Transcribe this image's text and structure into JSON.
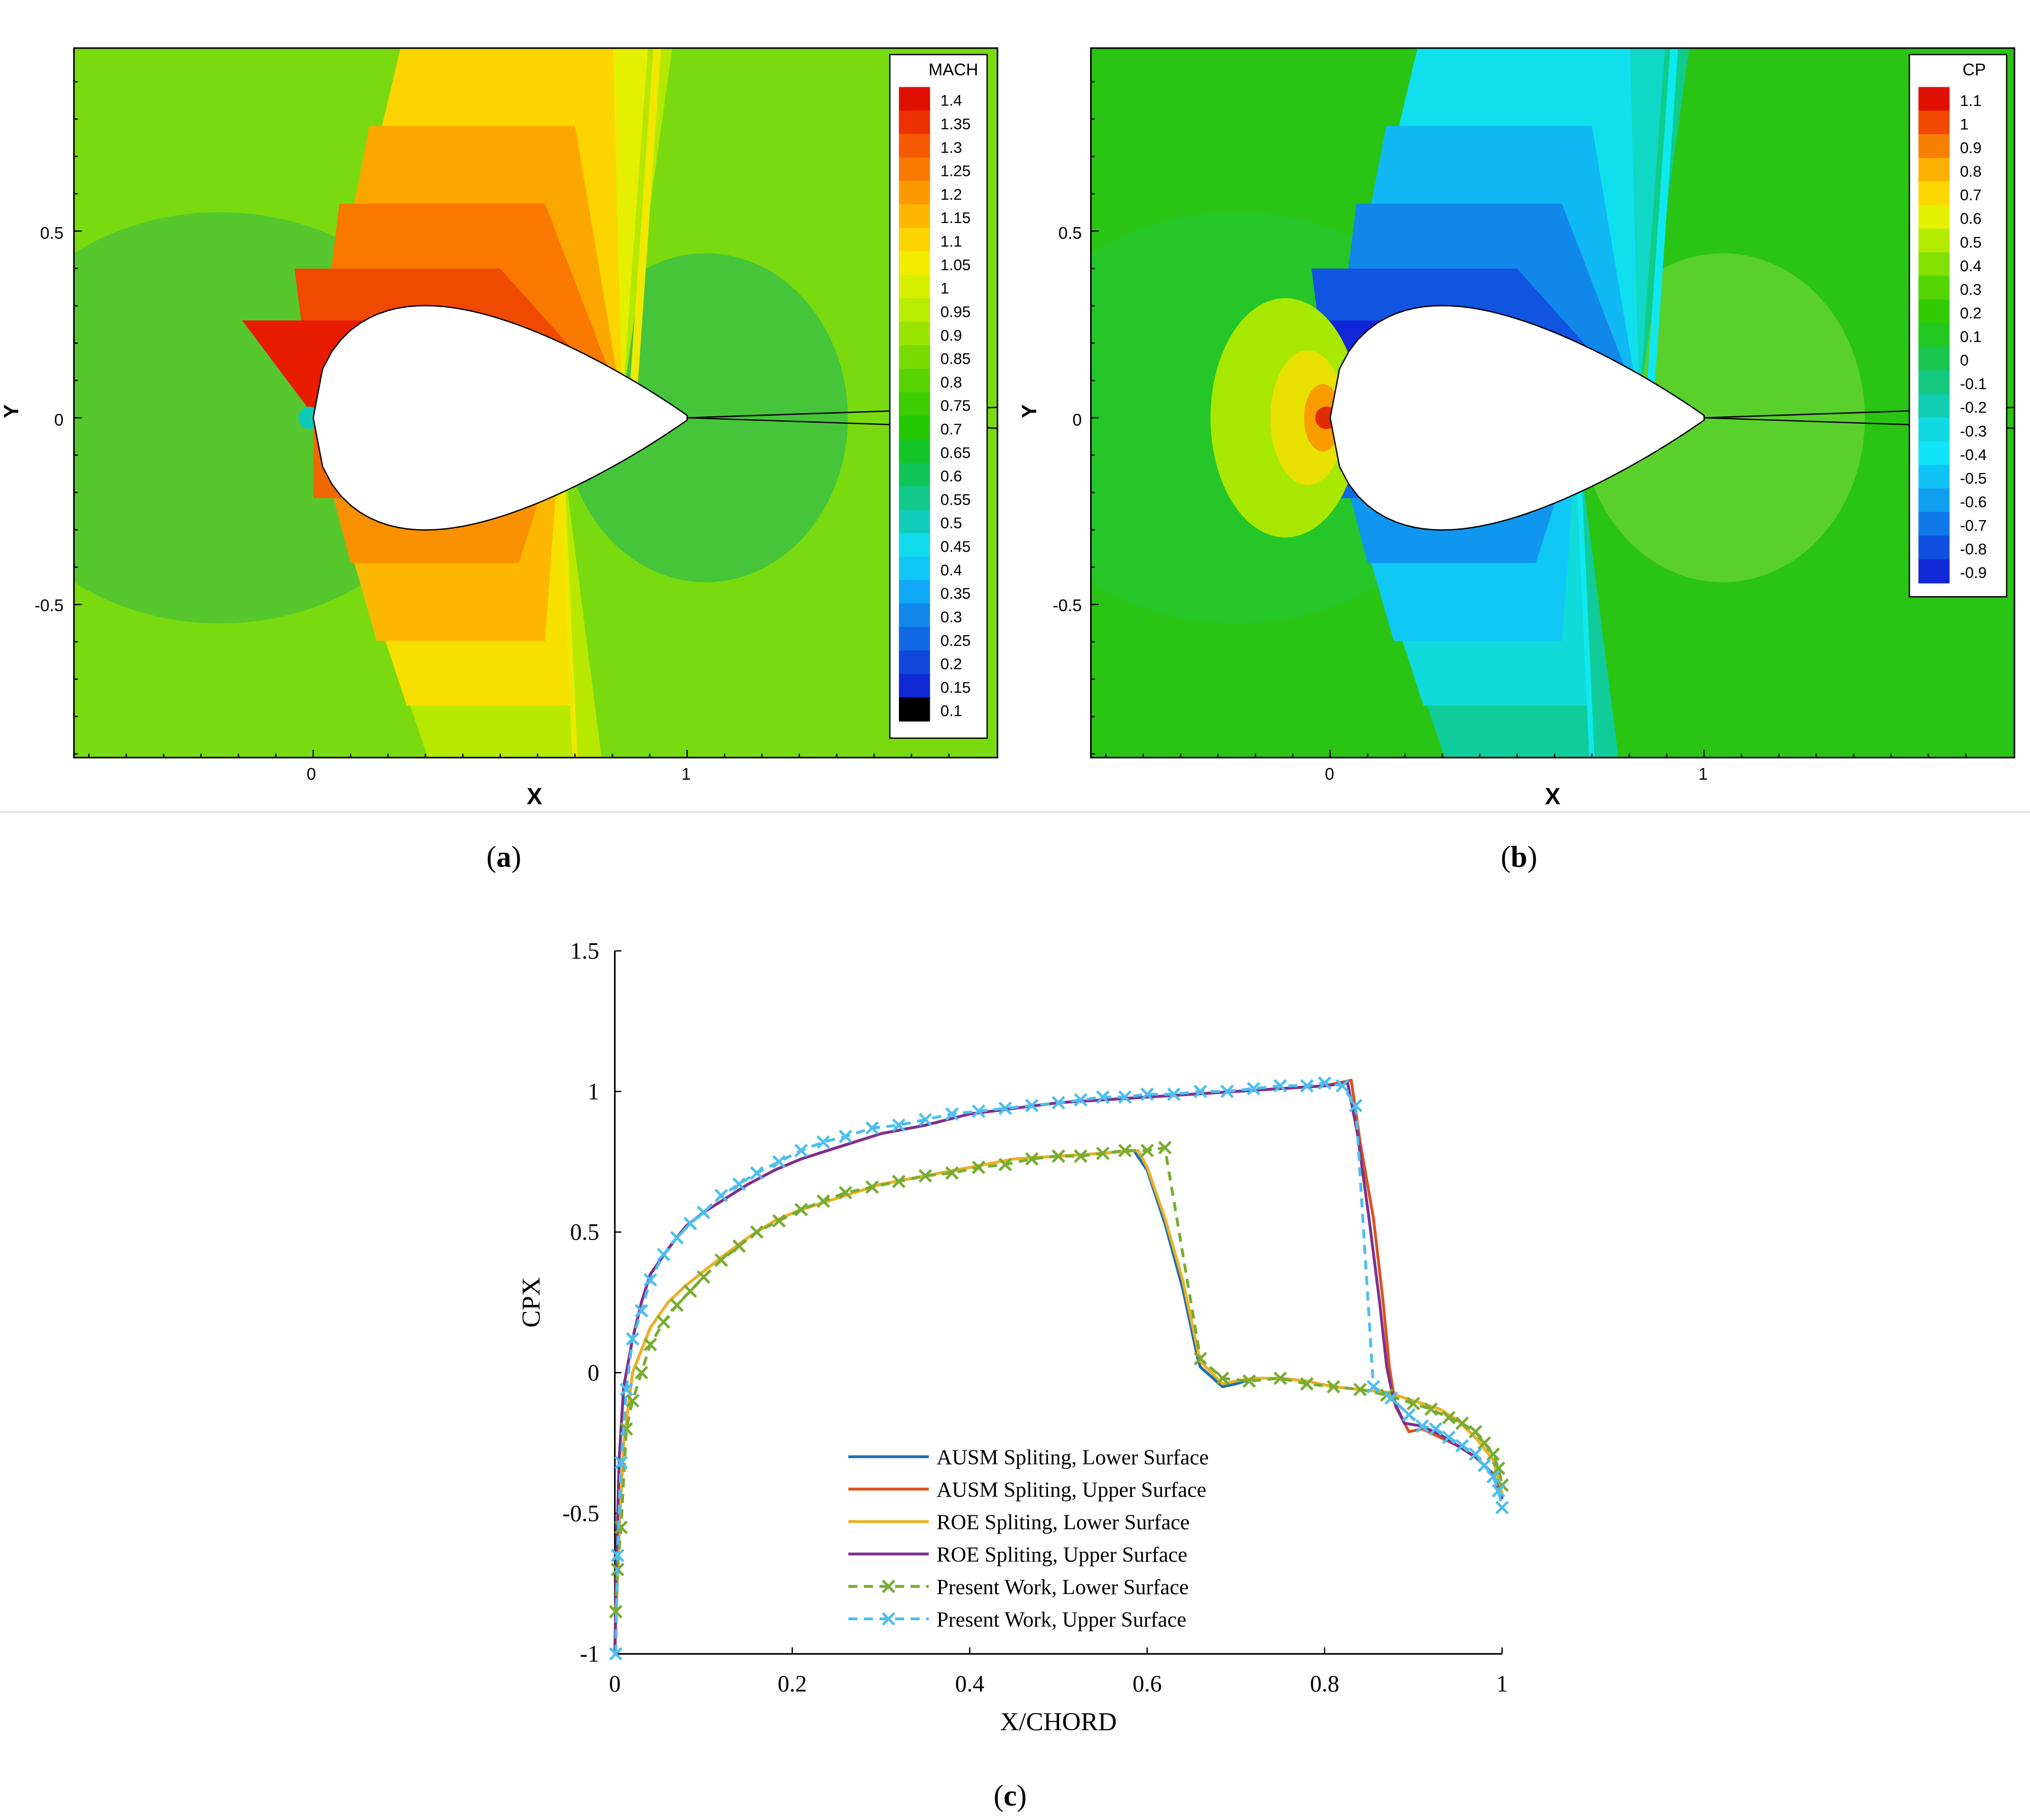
{
  "panels": {
    "a": {
      "caption": "a",
      "x_axis_label": "X",
      "y_axis_label": "Y",
      "x_ticks": [
        "0",
        "1"
      ],
      "y_ticks": [
        "0.5",
        "0",
        "-0.5"
      ],
      "legend_title": "MACH",
      "legend_levels": [
        "1.4",
        "1.35",
        "1.3",
        "1.25",
        "1.2",
        "1.15",
        "1.1",
        "1.05",
        "1",
        "0.95",
        "0.9",
        "0.85",
        "0.8",
        "0.75",
        "0.7",
        "0.65",
        "0.6",
        "0.55",
        "0.5",
        "0.45",
        "0.4",
        "0.35",
        "0.3",
        "0.25",
        "0.2",
        "0.15",
        "0.1"
      ],
      "legend_colors": [
        "#e01000",
        "#ec3000",
        "#f55a00",
        "#f87a00",
        "#fb9a00",
        "#fcb800",
        "#fcd400",
        "#f4ec00",
        "#d8f000",
        "#b8ec00",
        "#98e400",
        "#78dc00",
        "#58d400",
        "#3ccc00",
        "#24c800",
        "#14c628",
        "#10c458",
        "#10c888",
        "#10ccb8",
        "#10dcec",
        "#10c8f8",
        "#10a8f4",
        "#1088ec",
        "#1068e4",
        "#1048dc",
        "#1028d4",
        "#000000"
      ]
    },
    "b": {
      "caption": "b",
      "x_axis_label": "X",
      "y_axis_label": "Y",
      "x_ticks": [
        "0",
        "1"
      ],
      "y_ticks": [
        "0.5",
        "0",
        "-0.5"
      ],
      "legend_title": "CP",
      "legend_levels": [
        "1.1",
        "1",
        "0.9",
        "0.8",
        "0.7",
        "0.6",
        "0.5",
        "0.4",
        "0.3",
        "0.2",
        "0.1",
        "0",
        "-0.1",
        "-0.2",
        "-0.3",
        "-0.4",
        "-0.5",
        "-0.6",
        "-0.7",
        "-0.8",
        "-0.9"
      ],
      "legend_colors": [
        "#e01000",
        "#f04800",
        "#f88000",
        "#fcb000",
        "#fcd800",
        "#e4f000",
        "#b4ec00",
        "#84e000",
        "#54d400",
        "#30cc00",
        "#20c820",
        "#18c650",
        "#14c880",
        "#10ccb0",
        "#10d8e0",
        "#10e4f8",
        "#10c4f8",
        "#10a0f0",
        "#1078e8",
        "#1050e0",
        "#1028d8"
      ]
    },
    "c": {
      "caption": "c"
    }
  },
  "chart_data": [
    {
      "type": "contour",
      "panel": "a",
      "title": "",
      "variable": "MACH",
      "xlabel": "X",
      "ylabel": "Y",
      "xlim": [
        -0.64,
        1.83
      ],
      "ylim": [
        -0.91,
        0.99
      ],
      "xticks": [
        0,
        1
      ],
      "yticks": [
        -0.5,
        0,
        0.5
      ],
      "levels": [
        1.4,
        1.35,
        1.3,
        1.25,
        1.2,
        1.15,
        1.1,
        1.05,
        1,
        0.95,
        0.9,
        0.85,
        0.8,
        0.75,
        0.7,
        0.65,
        0.6,
        0.55,
        0.5,
        0.45,
        0.4,
        0.35,
        0.3,
        0.25,
        0.2,
        0.15,
        0.1
      ],
      "legend_position": "top-right",
      "colors": {
        "background": "#7ada10",
        "near": "#5acb2a",
        "outer": "#56c82e",
        "wake": "#46c53a",
        "stag": "#10c8b8",
        "fan_1": "#b4e800",
        "fan_2": "#e4f000",
        "fan_3": "#fcd400",
        "fan_4": "#fca600",
        "fan_5": "#f87800",
        "fan_6": "#f04a00",
        "fan_7": "#e81c00",
        "low_1": "#b8e800",
        "low_2": "#f6e000",
        "low_3": "#fcb800",
        "low_4": "#f89000",
        "low_5": "#f26800",
        "shock": "#f0e800"
      }
    },
    {
      "type": "contour",
      "panel": "b",
      "title": "",
      "variable": "CP",
      "xlabel": "X",
      "ylabel": "Y",
      "xlim": [
        -0.64,
        1.83
      ],
      "ylim": [
        -0.91,
        0.99
      ],
      "xticks": [
        0,
        1
      ],
      "yticks": [
        -0.5,
        0,
        0.5
      ],
      "levels": [
        1.1,
        1,
        0.9,
        0.8,
        0.7,
        0.6,
        0.5,
        0.4,
        0.3,
        0.2,
        0.1,
        0,
        -0.1,
        -0.2,
        -0.3,
        -0.4,
        -0.5,
        -0.6,
        -0.7,
        -0.8,
        -0.9
      ],
      "legend_position": "top-right",
      "colors": {
        "background": "#2ac414",
        "near": "#1ec43c",
        "outer": "#24c628",
        "wake": "#5ad02c",
        "stag": "#e02c00",
        "fan_1": "#10cc8a",
        "fan_2": "#10d8c6",
        "fan_3": "#10e0ee",
        "fan_4": "#10b8f4",
        "fan_5": "#1088ea",
        "fan_6": "#1054e0",
        "fan_7": "#1026d8",
        "low_1": "#10cc9a",
        "low_2": "#10dada",
        "low_3": "#10c8f6",
        "low_4": "#1096ee",
        "low_5": "#1068e4",
        "shock": "#10e8f0",
        "stag_1": "#a8e800",
        "stag_2": "#e8e000",
        "stag_3": "#f89c00"
      }
    },
    {
      "type": "line",
      "panel": "c",
      "title": "",
      "xlabel": "X/CHORD",
      "ylabel": "CPX",
      "xlim": [
        0,
        1
      ],
      "ylim": [
        -1,
        1.5
      ],
      "xticks": [
        0,
        0.2,
        0.4,
        0.6,
        0.8,
        1
      ],
      "xticklabels": [
        "0",
        "0.2",
        "0.4",
        "0.6",
        "0.8",
        "1"
      ],
      "yticks": [
        -1,
        -0.5,
        0,
        0.5,
        1,
        1.5
      ],
      "yticklabels": [
        "-1",
        "-0.5",
        "0",
        "0.5",
        "1",
        "1.5"
      ],
      "legend_position": "bottom-center",
      "series": [
        {
          "name": "AUSM Spliting, Lower Surface",
          "color": "#1f6fb4",
          "dash": "solid",
          "marker": "none",
          "x": [
            0.0,
            0.002,
            0.005,
            0.01,
            0.02,
            0.03,
            0.04,
            0.06,
            0.08,
            0.1,
            0.12,
            0.15,
            0.18,
            0.21,
            0.25,
            0.3,
            0.35,
            0.4,
            0.45,
            0.5,
            0.55,
            0.585,
            0.6,
            0.62,
            0.64,
            0.657,
            0.66,
            0.685,
            0.7,
            0.72,
            0.75,
            0.78,
            0.81,
            0.84,
            0.87,
            0.9,
            0.93,
            0.95,
            0.97,
            0.99,
            1.0
          ],
          "y": [
            -1.0,
            -0.82,
            -0.55,
            -0.25,
            0.0,
            0.08,
            0.16,
            0.25,
            0.31,
            0.36,
            0.41,
            0.48,
            0.54,
            0.58,
            0.62,
            0.67,
            0.7,
            0.73,
            0.76,
            0.77,
            0.78,
            0.79,
            0.72,
            0.53,
            0.3,
            0.05,
            0.02,
            -0.05,
            -0.04,
            -0.02,
            -0.02,
            -0.03,
            -0.05,
            -0.06,
            -0.07,
            -0.1,
            -0.13,
            -0.17,
            -0.23,
            -0.31,
            -0.43
          ]
        },
        {
          "name": "AUSM Spliting, Upper Surface",
          "color": "#d9531e",
          "dash": "solid",
          "marker": "none",
          "x": [
            0.0,
            0.002,
            0.005,
            0.01,
            0.02,
            0.03,
            0.04,
            0.06,
            0.08,
            0.1,
            0.12,
            0.15,
            0.18,
            0.21,
            0.25,
            0.3,
            0.35,
            0.4,
            0.45,
            0.5,
            0.55,
            0.6,
            0.65,
            0.7,
            0.75,
            0.8,
            0.83,
            0.84,
            0.855,
            0.866,
            0.873,
            0.88,
            0.895,
            0.91,
            0.93,
            0.95,
            0.97,
            0.99,
            1.0
          ],
          "y": [
            -1.0,
            -0.65,
            -0.3,
            -0.05,
            0.12,
            0.25,
            0.35,
            0.44,
            0.52,
            0.57,
            0.61,
            0.67,
            0.72,
            0.76,
            0.8,
            0.85,
            0.88,
            0.92,
            0.94,
            0.96,
            0.97,
            0.98,
            0.99,
            1.0,
            1.01,
            1.02,
            1.04,
            0.82,
            0.55,
            0.25,
            0.02,
            -0.12,
            -0.21,
            -0.2,
            -0.23,
            -0.26,
            -0.3,
            -0.36,
            -0.45
          ]
        },
        {
          "name": "ROE Spliting, Lower Surface",
          "color": "#edb120",
          "dash": "solid",
          "marker": "none",
          "x": [
            0.0,
            0.002,
            0.005,
            0.01,
            0.02,
            0.03,
            0.04,
            0.06,
            0.08,
            0.1,
            0.12,
            0.15,
            0.18,
            0.21,
            0.25,
            0.3,
            0.35,
            0.4,
            0.45,
            0.5,
            0.55,
            0.59,
            0.6,
            0.62,
            0.64,
            0.657,
            0.66,
            0.685,
            0.7,
            0.72,
            0.75,
            0.78,
            0.81,
            0.84,
            0.87,
            0.9,
            0.93,
            0.95,
            0.97,
            0.99,
            1.0
          ],
          "y": [
            -1.0,
            -0.82,
            -0.55,
            -0.25,
            0.0,
            0.08,
            0.16,
            0.25,
            0.31,
            0.36,
            0.41,
            0.48,
            0.54,
            0.58,
            0.62,
            0.67,
            0.7,
            0.73,
            0.76,
            0.77,
            0.78,
            0.79,
            0.73,
            0.55,
            0.33,
            0.08,
            0.04,
            -0.04,
            -0.03,
            -0.02,
            -0.02,
            -0.03,
            -0.05,
            -0.06,
            -0.07,
            -0.1,
            -0.13,
            -0.17,
            -0.23,
            -0.31,
            -0.43
          ]
        },
        {
          "name": "ROE Spliting, Upper Surface",
          "color": "#7e2f8e",
          "dash": "solid",
          "marker": "none",
          "x": [
            0.0,
            0.002,
            0.005,
            0.01,
            0.02,
            0.03,
            0.04,
            0.06,
            0.08,
            0.1,
            0.12,
            0.15,
            0.18,
            0.21,
            0.25,
            0.3,
            0.35,
            0.4,
            0.45,
            0.5,
            0.55,
            0.6,
            0.65,
            0.7,
            0.75,
            0.8,
            0.826,
            0.837,
            0.85,
            0.862,
            0.87,
            0.878,
            0.89,
            0.91,
            0.93,
            0.95,
            0.97,
            0.99,
            1.0
          ],
          "y": [
            -1.0,
            -0.65,
            -0.3,
            -0.05,
            0.12,
            0.25,
            0.35,
            0.44,
            0.52,
            0.57,
            0.61,
            0.67,
            0.72,
            0.76,
            0.8,
            0.85,
            0.88,
            0.92,
            0.94,
            0.96,
            0.97,
            0.98,
            0.99,
            1.0,
            1.01,
            1.02,
            1.03,
            0.85,
            0.55,
            0.25,
            0.02,
            -0.1,
            -0.18,
            -0.19,
            -0.22,
            -0.26,
            -0.3,
            -0.36,
            -0.45
          ]
        },
        {
          "name": "Present Work, Lower Surface",
          "color": "#77ac30",
          "dash": "dashed",
          "marker": "x",
          "x": [
            0.001,
            0.003,
            0.007,
            0.013,
            0.02,
            0.03,
            0.04,
            0.055,
            0.07,
            0.085,
            0.1,
            0.12,
            0.14,
            0.16,
            0.185,
            0.21,
            0.235,
            0.26,
            0.29,
            0.32,
            0.35,
            0.38,
            0.41,
            0.44,
            0.47,
            0.5,
            0.525,
            0.55,
            0.575,
            0.6,
            0.62,
            0.66,
            0.685,
            0.715,
            0.75,
            0.78,
            0.81,
            0.84,
            0.87,
            0.9,
            0.92,
            0.94,
            0.955,
            0.97,
            0.98,
            0.99,
            0.996,
            1.0
          ],
          "y": [
            -0.85,
            -0.7,
            -0.55,
            -0.2,
            -0.1,
            0.0,
            0.1,
            0.18,
            0.24,
            0.29,
            0.34,
            0.4,
            0.45,
            0.5,
            0.54,
            0.58,
            0.61,
            0.64,
            0.66,
            0.68,
            0.7,
            0.71,
            0.73,
            0.74,
            0.76,
            0.77,
            0.77,
            0.78,
            0.79,
            0.79,
            0.8,
            0.05,
            -0.02,
            -0.03,
            -0.02,
            -0.04,
            -0.05,
            -0.06,
            -0.08,
            -0.11,
            -0.13,
            -0.16,
            -0.18,
            -0.21,
            -0.25,
            -0.29,
            -0.34,
            -0.4
          ]
        },
        {
          "name": "Present Work, Upper Surface",
          "color": "#4dbeee",
          "dash": "dashed",
          "marker": "x",
          "x": [
            0.001,
            0.003,
            0.007,
            0.013,
            0.02,
            0.03,
            0.04,
            0.055,
            0.07,
            0.085,
            0.1,
            0.12,
            0.14,
            0.16,
            0.185,
            0.21,
            0.235,
            0.26,
            0.29,
            0.32,
            0.35,
            0.38,
            0.41,
            0.44,
            0.47,
            0.5,
            0.525,
            0.55,
            0.575,
            0.6,
            0.63,
            0.66,
            0.69,
            0.72,
            0.75,
            0.78,
            0.8,
            0.82,
            0.835,
            0.855,
            0.875,
            0.895,
            0.91,
            0.925,
            0.94,
            0.955,
            0.97,
            0.98,
            0.99,
            0.996,
            1.0
          ],
          "y": [
            -1.0,
            -0.65,
            -0.32,
            -0.06,
            0.12,
            0.22,
            0.33,
            0.42,
            0.48,
            0.53,
            0.57,
            0.63,
            0.67,
            0.71,
            0.75,
            0.79,
            0.82,
            0.84,
            0.87,
            0.88,
            0.9,
            0.92,
            0.93,
            0.94,
            0.95,
            0.96,
            0.97,
            0.98,
            0.98,
            0.99,
            0.99,
            1.0,
            1.0,
            1.01,
            1.02,
            1.02,
            1.03,
            1.02,
            0.95,
            -0.05,
            -0.09,
            -0.15,
            -0.19,
            -0.2,
            -0.23,
            -0.26,
            -0.29,
            -0.33,
            -0.37,
            -0.42,
            -0.48
          ]
        }
      ]
    }
  ]
}
